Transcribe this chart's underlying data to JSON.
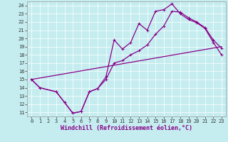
{
  "xlabel": "Windchill (Refroidissement éolien,°C)",
  "xlim": [
    -0.5,
    23.5
  ],
  "ylim": [
    10.5,
    24.5
  ],
  "xticks": [
    0,
    1,
    2,
    3,
    4,
    5,
    6,
    7,
    8,
    9,
    10,
    11,
    12,
    13,
    14,
    15,
    16,
    17,
    18,
    19,
    20,
    21,
    22,
    23
  ],
  "yticks": [
    11,
    12,
    13,
    14,
    15,
    16,
    17,
    18,
    19,
    20,
    21,
    22,
    23,
    24
  ],
  "bg_color": "#c5edf0",
  "line_color": "#880088",
  "grid_color": "#aadddd",
  "s1x": [
    0,
    1,
    3,
    4,
    5,
    6,
    7,
    8,
    9,
    10,
    11,
    12,
    13,
    14,
    15,
    16,
    17,
    18,
    19,
    20,
    21,
    22,
    23
  ],
  "s1y": [
    15.0,
    14.0,
    13.5,
    12.2,
    10.9,
    11.1,
    13.5,
    13.9,
    15.3,
    19.8,
    18.7,
    19.5,
    21.8,
    21.0,
    23.3,
    23.5,
    24.2,
    23.0,
    22.3,
    21.9,
    21.2,
    19.5,
    18.0
  ],
  "s2x": [
    0,
    1,
    3,
    4,
    5,
    6,
    7,
    8,
    9,
    10,
    11,
    12,
    13,
    14,
    15,
    16,
    17,
    18,
    19,
    20,
    21,
    22,
    23
  ],
  "s2y": [
    15.0,
    14.0,
    13.5,
    12.2,
    10.9,
    11.1,
    13.5,
    13.9,
    15.0,
    17.0,
    17.3,
    18.0,
    18.5,
    19.2,
    20.5,
    21.5,
    23.3,
    23.2,
    22.5,
    22.0,
    21.3,
    19.8,
    18.8
  ],
  "s3x": [
    0,
    23
  ],
  "s3y": [
    15.0,
    19.0
  ],
  "font_size_tick": 5,
  "font_size_label": 6,
  "lw": 0.9,
  "ms": 3.0
}
